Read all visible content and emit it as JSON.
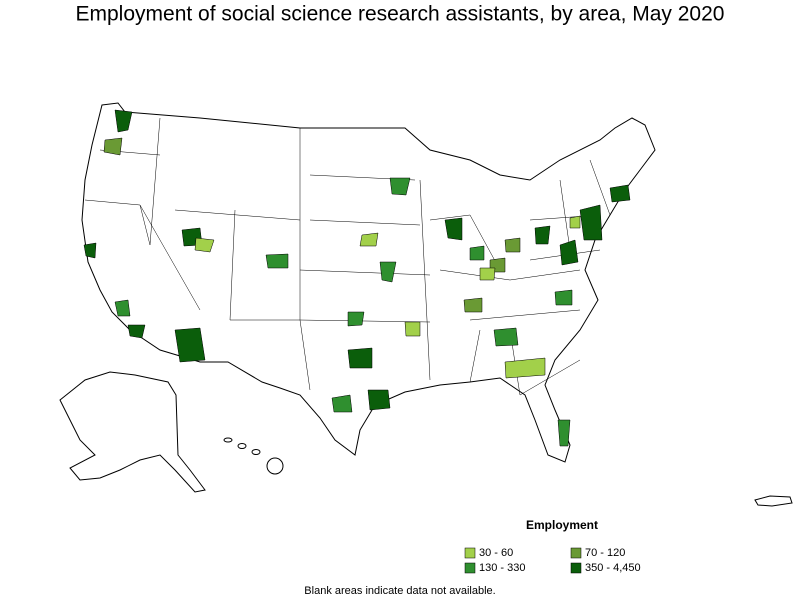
{
  "title": "Employment of social science research assistants, by area, May 2020",
  "legend": {
    "title": "Employment",
    "items": [
      {
        "label": "30 - 60",
        "color": "#a2d04a"
      },
      {
        "label": "70 - 120",
        "color": "#6a9a34"
      },
      {
        "label": "130 - 330",
        "color": "#2f8f2f"
      },
      {
        "label": "350 - 4,450",
        "color": "#0b5e0b"
      }
    ]
  },
  "note": "Blank areas indicate data not available."
}
